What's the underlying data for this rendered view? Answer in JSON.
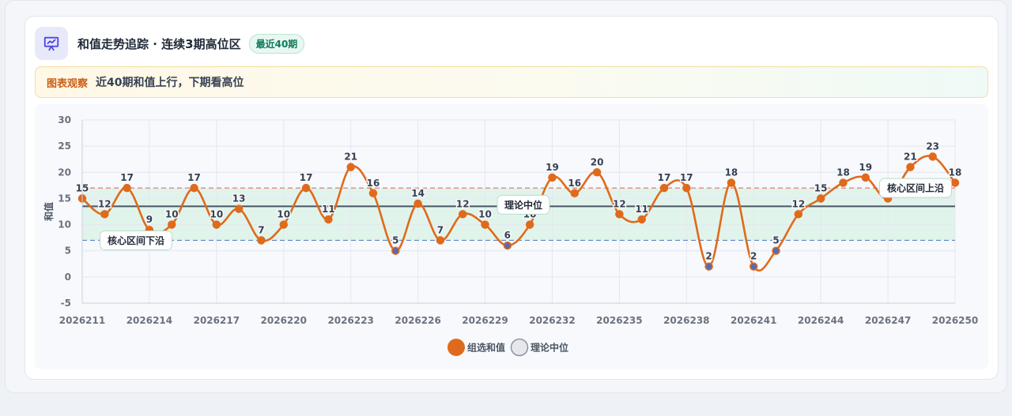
{
  "header": {
    "title": "和值走势追踪 · 连续3期高位区",
    "badge": "最近40期"
  },
  "notice": {
    "tag": "图表观察",
    "text": "近40期和值上行，下期看高位"
  },
  "colors": {
    "line": "#e06a1b",
    "median": "#4b5563",
    "upper": "#e26d6d",
    "lower": "#5b86c5",
    "band": "#d9f2e6"
  },
  "chart_data": {
    "type": "line",
    "ylabel": "和值",
    "ylim": [
      -5,
      30
    ],
    "yticks": [
      -5,
      0,
      5,
      10,
      15,
      20,
      25,
      30
    ],
    "x": [
      "2026211",
      "2026212",
      "2026213",
      "2026214",
      "2026215",
      "2026216",
      "2026217",
      "2026218",
      "2026219",
      "2026220",
      "2026221",
      "2026222",
      "2026223",
      "2026224",
      "2026225",
      "2026226",
      "2026227",
      "2026228",
      "2026229",
      "2026230",
      "2026231",
      "2026232",
      "2026233",
      "2026234",
      "2026235",
      "2026236",
      "2026237",
      "2026238",
      "2026239",
      "2026240",
      "2026241",
      "2026242",
      "2026243",
      "2026244",
      "2026245",
      "2026246",
      "2026247",
      "2026248",
      "2026249",
      "2026250"
    ],
    "xtick_labels": [
      "2026211",
      "2026214",
      "2026217",
      "2026220",
      "2026223",
      "2026226",
      "2026229",
      "2026232",
      "2026235",
      "2026238",
      "2026241",
      "2026244",
      "2026247",
      "2026250"
    ],
    "series": [
      {
        "name": "组选和值",
        "values": [
          15,
          12,
          17,
          9,
          10,
          17,
          10,
          13,
          7,
          10,
          17,
          11,
          21,
          16,
          5,
          14,
          7,
          12,
          10,
          6,
          10,
          19,
          16,
          20,
          12,
          11,
          17,
          17,
          2,
          18,
          2,
          5,
          12,
          15,
          18,
          19,
          15,
          21,
          23,
          18
        ]
      }
    ],
    "reference_lines": [
      {
        "name": "理论中位",
        "value": 13.5
      },
      {
        "name": "核心区间上沿",
        "value": 17
      },
      {
        "name": "核心区间下沿",
        "value": 7
      }
    ],
    "legend": [
      "组选和值",
      "理论中位"
    ],
    "legend_position": "bottom",
    "grid": true
  }
}
